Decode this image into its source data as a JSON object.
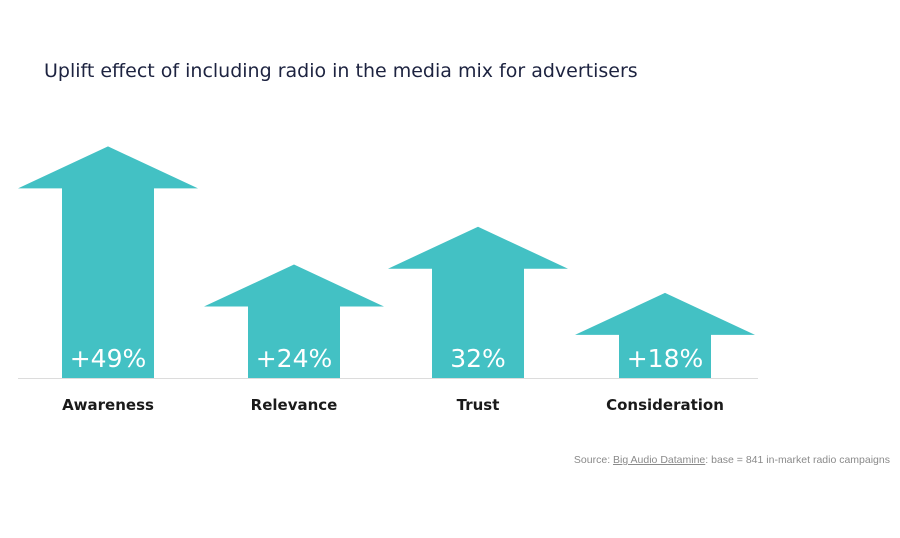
{
  "chart_data": {
    "type": "bar",
    "title": "Uplift effect of including radio in the media mix for advertisers",
    "categories": [
      "Awareness",
      "Relevance",
      "Trust",
      "Consideration"
    ],
    "values": [
      49,
      24,
      32,
      18
    ],
    "value_labels": [
      "+49%",
      "+24%",
      "32%",
      "+18%"
    ],
    "xlabel": "",
    "ylabel": "",
    "ylim": [
      0,
      55
    ],
    "grid": false,
    "legend": "none",
    "mark_shape": "arrow",
    "colors": {
      "arrow": "#43c1c4",
      "baseline": "#dcdcdc",
      "title": "#1d2340",
      "category_label": "#1a1a1a",
      "value_label": "#ffffff"
    }
  },
  "source": {
    "prefix": "Source: ",
    "link_text": "Big Audio Datamine",
    "suffix": ": base = 841 in-market radio campaigns"
  }
}
